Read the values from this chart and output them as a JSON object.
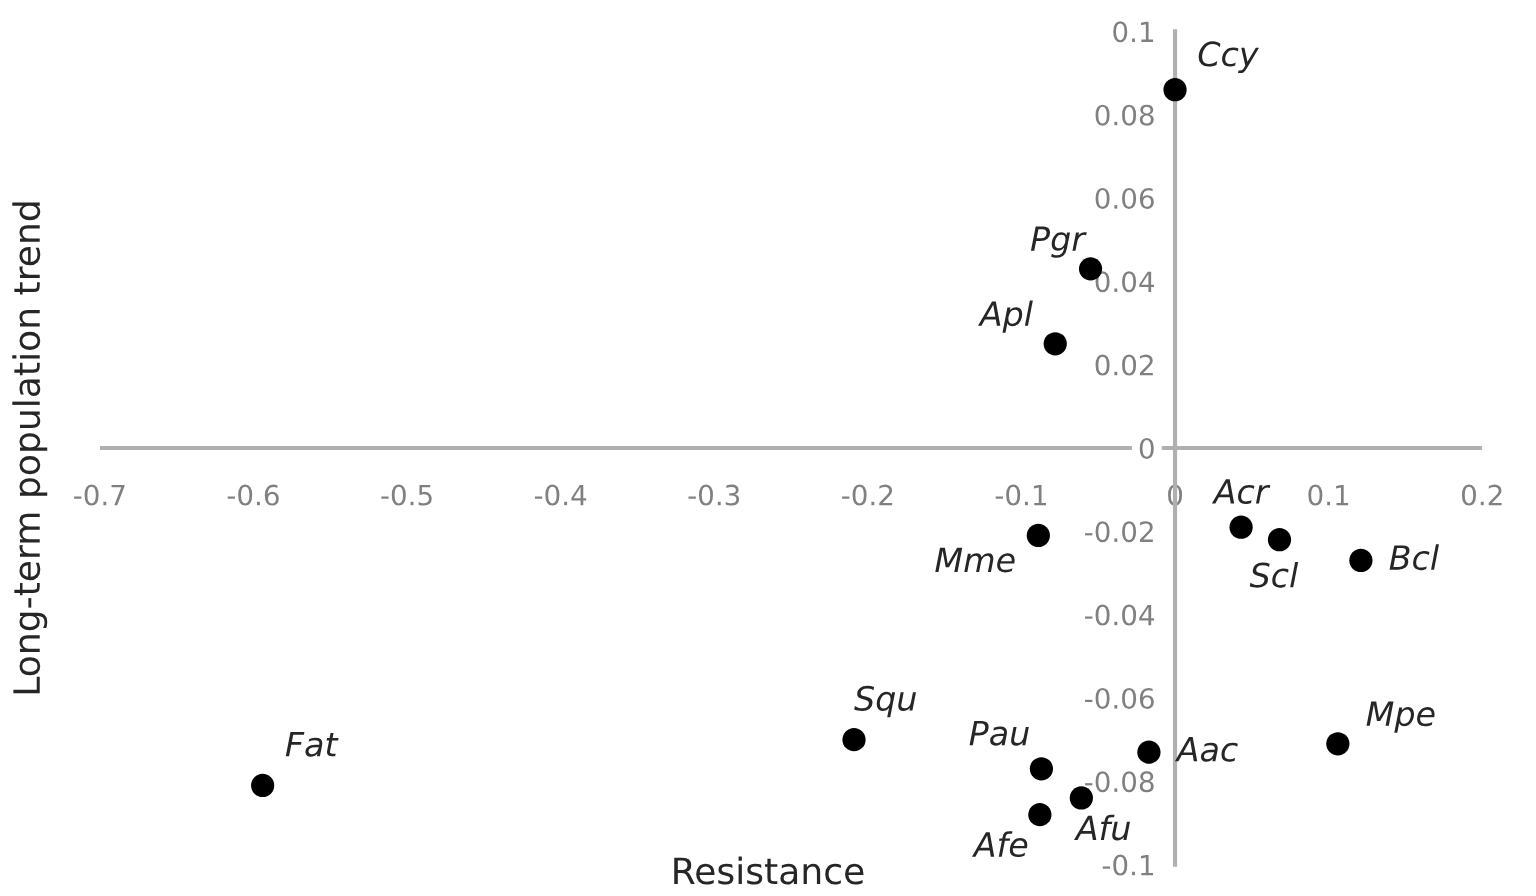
{
  "chart_data": {
    "type": "scatter",
    "xlabel": "Resistance",
    "ylabel": "Long-term population trend",
    "x": [
      0,
      -0.055,
      -0.078,
      -0.089,
      0.043,
      0.068,
      0.121,
      -0.209,
      -0.087,
      -0.017,
      0.106,
      -0.061,
      -0.088,
      -0.594
    ],
    "series": [
      {
        "color": "#000000",
        "values": [
          0.086,
          0.043,
          0.025,
          -0.021,
          -0.019,
          -0.022,
          -0.027,
          -0.07,
          -0.077,
          -0.073,
          -0.071,
          -0.084,
          -0.088,
          -0.081
        ]
      }
    ],
    "annotations": [
      {
        "text": "Ccy",
        "x": 0,
        "y": 0.086
      },
      {
        "text": "Pgr",
        "x": -0.055,
        "y": 0.043
      },
      {
        "text": "Apl",
        "x": -0.078,
        "y": 0.025
      },
      {
        "text": "Mme",
        "x": -0.089,
        "y": -0.021
      },
      {
        "text": "Acr",
        "x": 0.043,
        "y": -0.019
      },
      {
        "text": "Scl",
        "x": 0.068,
        "y": -0.022
      },
      {
        "text": "Bcl",
        "x": 0.121,
        "y": -0.027
      },
      {
        "text": "Squ",
        "x": -0.209,
        "y": -0.07
      },
      {
        "text": "Pau",
        "x": -0.087,
        "y": -0.077
      },
      {
        "text": "Aac",
        "x": -0.017,
        "y": -0.073
      },
      {
        "text": "Mpe",
        "x": 0.106,
        "y": -0.071
      },
      {
        "text": "Afu",
        "x": -0.061,
        "y": -0.084
      },
      {
        "text": "Afe",
        "x": -0.088,
        "y": -0.088
      },
      {
        "text": "Fat",
        "x": -0.594,
        "y": -0.081
      }
    ],
    "xlim": [
      -0.7,
      0.2
    ],
    "ylim": [
      -0.1,
      0.1
    ],
    "xticks": [
      -0.7,
      -0.6,
      -0.5,
      -0.4,
      -0.3,
      -0.2,
      -0.1,
      0,
      0.1,
      0.2
    ],
    "yticks": [
      -0.1,
      -0.08,
      -0.06,
      -0.04,
      -0.02,
      0,
      0.02,
      0.04,
      0.06,
      0.08,
      0.1
    ],
    "marker": "circle",
    "grid": false,
    "legend": false
  }
}
